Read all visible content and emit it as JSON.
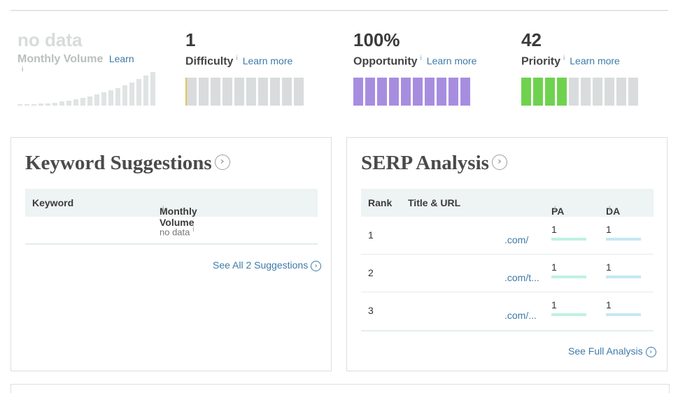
{
  "metrics": {
    "volume": {
      "value": "no data",
      "label": "Monthly Volume",
      "learn": "Learn",
      "info": "i"
    },
    "difficulty": {
      "value": "1",
      "label": "Difficulty",
      "learn": "Learn more",
      "info": "i",
      "level_fraction": 0.01
    },
    "opportunity": {
      "value": "100%",
      "label": "Opportunity",
      "learn": "Learn more",
      "info": "i",
      "level_fraction": 1.0
    },
    "priority": {
      "value": "42",
      "label": "Priority",
      "learn": "Learn more",
      "info": "i",
      "level_fraction": 0.42
    }
  },
  "colors": {
    "empty_segment": "#d8dcdc",
    "opportunity": "#a78de0",
    "priority": "#6fd24f",
    "difficulty_accent": "#e8c25a",
    "link": "#3d7aa8",
    "pa_line": "#bff1e4",
    "da_line": "#c5e8f2"
  },
  "keyword_suggestions": {
    "title": "Keyword Suggestions",
    "col_keyword": "Keyword",
    "col_volume": "Monthly Volume",
    "info": "i",
    "empty_value": "no data",
    "see_all": "See All 2 Suggestions"
  },
  "serp": {
    "title": "SERP Analysis",
    "col_rank": "Rank",
    "col_title": "Title & URL",
    "col_pa": "PA",
    "col_da": "DA",
    "info": "i",
    "rows": [
      {
        "rank": "1",
        "url": ".com/",
        "pa": "1",
        "da": "1"
      },
      {
        "rank": "2",
        "url": ".com/t...",
        "pa": "1",
        "da": "1"
      },
      {
        "rank": "3",
        "url": ".com/...",
        "pa": "1",
        "da": "1"
      }
    ],
    "see_full": "See Full Analysis"
  },
  "icons": {
    "arrow_circle": "arrow-circle-right-icon",
    "info": "info-icon"
  }
}
